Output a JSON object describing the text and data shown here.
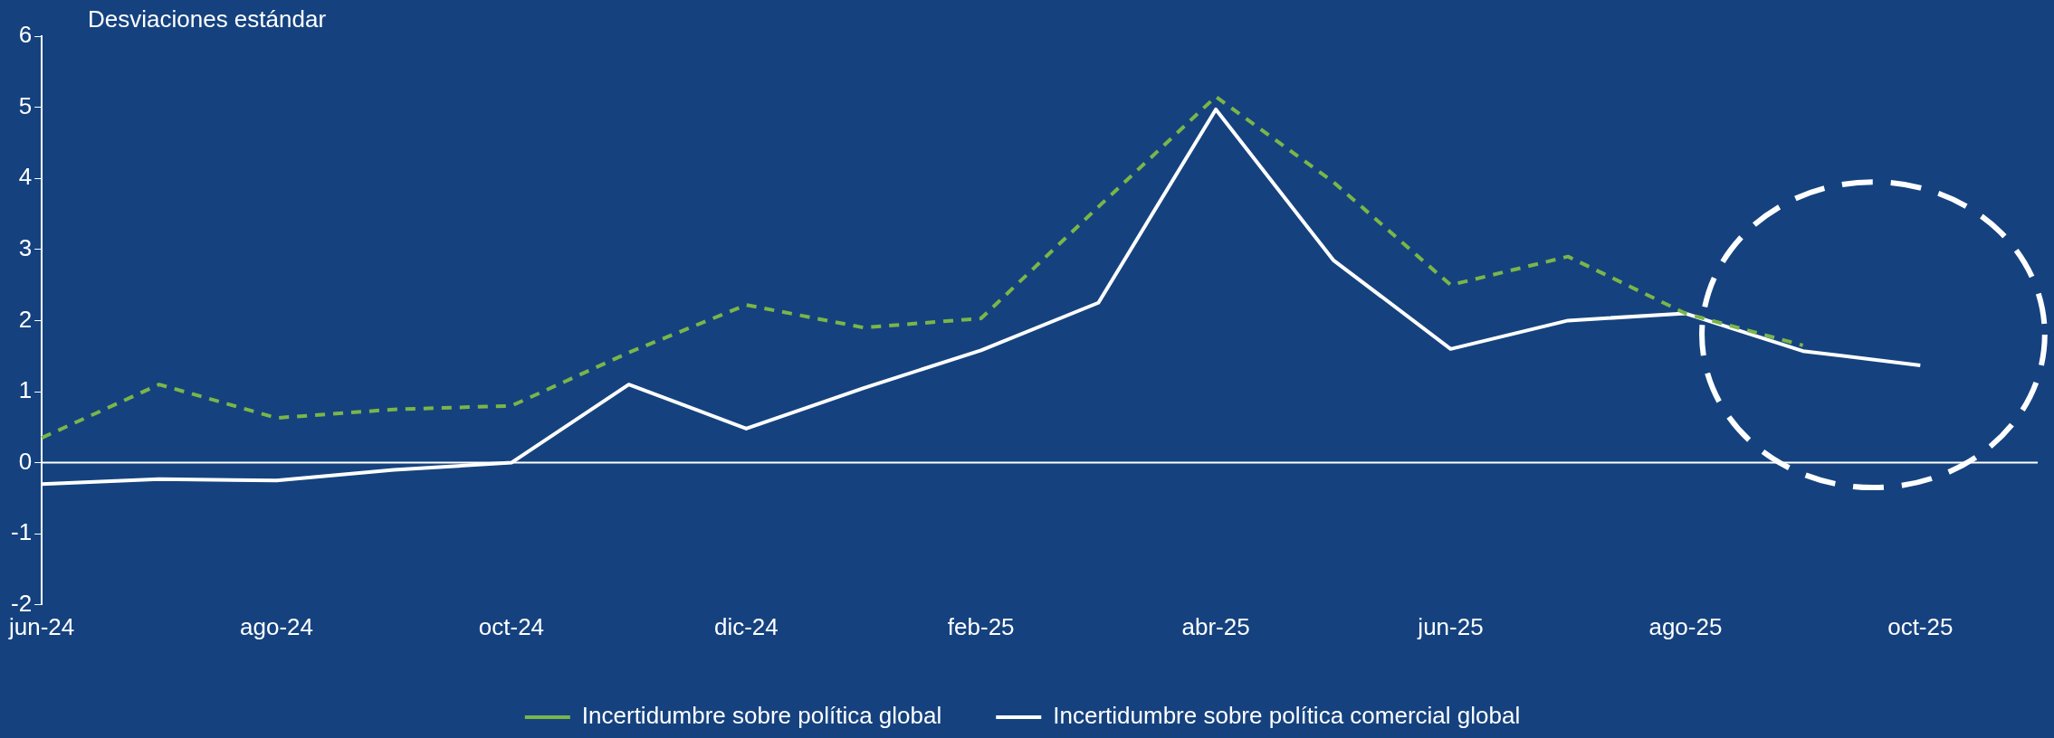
{
  "chart_data": {
    "type": "line",
    "ylabel": "Desviaciones estándar",
    "categories": [
      "jun-24",
      null,
      "ago-24",
      null,
      "oct-24",
      null,
      "dic-24",
      null,
      "feb-25",
      null,
      "abr-25",
      null,
      "jun-25",
      null,
      "ago-25",
      null,
      "oct-25",
      null
    ],
    "series": [
      {
        "name": "Incertidumbre sobre política global",
        "color": "#7ab648",
        "line_style": "dashed",
        "values": [
          0.35,
          1.1,
          0.63,
          0.75,
          0.8,
          1.55,
          2.22,
          1.9,
          2.03,
          3.6,
          5.15,
          3.95,
          2.5,
          2.9,
          2.1,
          1.65,
          null,
          null
        ]
      },
      {
        "name": "Incertidumbre sobre política comercial global",
        "color": "#ffffff",
        "line_style": "solid",
        "values": [
          -0.3,
          -0.23,
          -0.25,
          -0.1,
          0,
          1.1,
          0.48,
          1.05,
          1.58,
          2.25,
          4.97,
          2.85,
          1.6,
          2.0,
          2.1,
          1.57,
          1.37,
          null
        ]
      }
    ],
    "ylim": [
      -2,
      6
    ],
    "yticks": [
      -2,
      -1,
      0,
      1,
      2,
      3,
      4,
      5,
      6
    ],
    "ref_lines": [
      {
        "axis": "y",
        "value": 0,
        "color": "#ffffff"
      }
    ],
    "grid": false,
    "legend": "bottom",
    "marker": "none"
  }
}
